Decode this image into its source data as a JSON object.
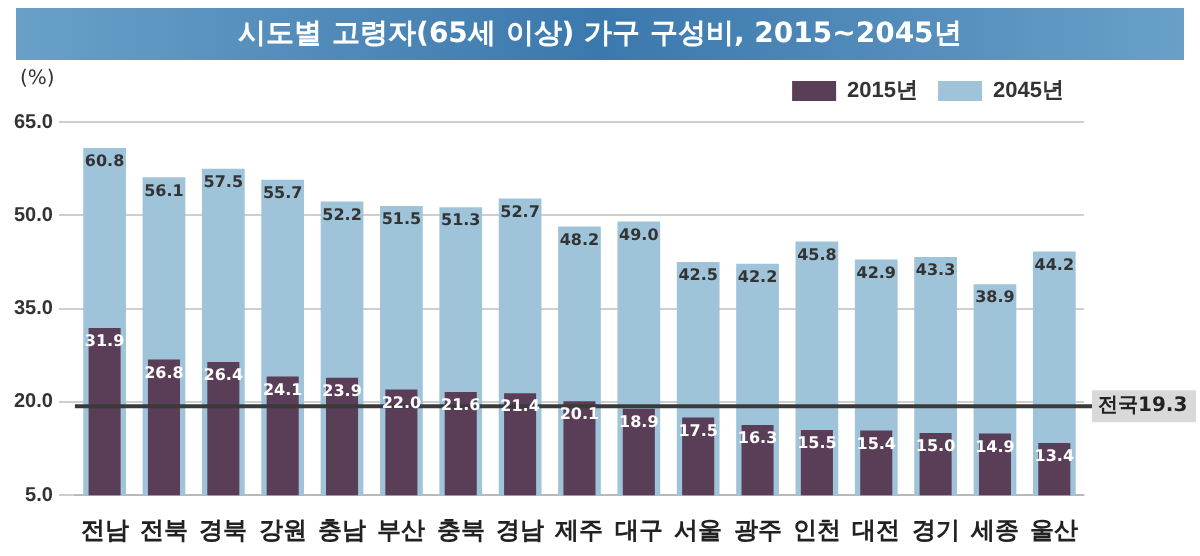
{
  "chart_data": {
    "type": "bar",
    "title": "시도별 고령자(65세 이상) 가구 구성비, 2015~2045년",
    "ylabel": "(%)",
    "categories": [
      "전남",
      "전북",
      "경북",
      "강원",
      "충남",
      "부산",
      "충북",
      "경남",
      "제주",
      "대구",
      "서울",
      "광주",
      "인천",
      "대전",
      "경기",
      "세종",
      "울산"
    ],
    "series": [
      {
        "name": "2015년",
        "color": "#5a3d56",
        "values": [
          31.9,
          26.8,
          26.4,
          24.1,
          23.9,
          22.0,
          21.6,
          21.4,
          20.1,
          18.9,
          17.5,
          16.3,
          15.5,
          15.4,
          15.0,
          14.9,
          13.4
        ],
        "value_labels": [
          "31.9",
          "26.8",
          "26.4",
          "24.1",
          "23.9",
          "22.0",
          "21.6",
          "21.4",
          "20.1",
          "18.9",
          "17.5",
          "16.3",
          "15.5",
          "15.4",
          "15.0",
          "14.9",
          "13.4"
        ]
      },
      {
        "name": "2045년",
        "color": "#9fc4d9",
        "values": [
          60.8,
          56.1,
          57.5,
          55.7,
          52.2,
          51.5,
          51.3,
          52.7,
          48.2,
          49.0,
          42.5,
          42.2,
          45.8,
          42.9,
          43.3,
          38.9,
          44.2
        ],
        "value_labels": [
          "60.8",
          "56.1",
          "57.5",
          "55.7",
          "52.2",
          "51.5",
          "51.3",
          "52.7",
          "48.2",
          "49.0",
          "42.5",
          "42.2",
          "45.8",
          "42.9",
          "43.3",
          "38.9",
          "44.2"
        ]
      }
    ],
    "ylim": [
      5,
      65
    ],
    "yticks": [
      {
        "value": 5,
        "label": "5.0"
      },
      {
        "value": 20,
        "label": "20.0"
      },
      {
        "value": 35,
        "label": "35.0"
      },
      {
        "value": 50,
        "label": "50.0"
      },
      {
        "value": 65,
        "label": "65.0"
      }
    ],
    "grid": "y",
    "legend": "top right",
    "ref_lines": [
      {
        "axis": "y",
        "value": 19.3,
        "label": "전국19.3",
        "color": "#3a3a3a"
      }
    ]
  }
}
